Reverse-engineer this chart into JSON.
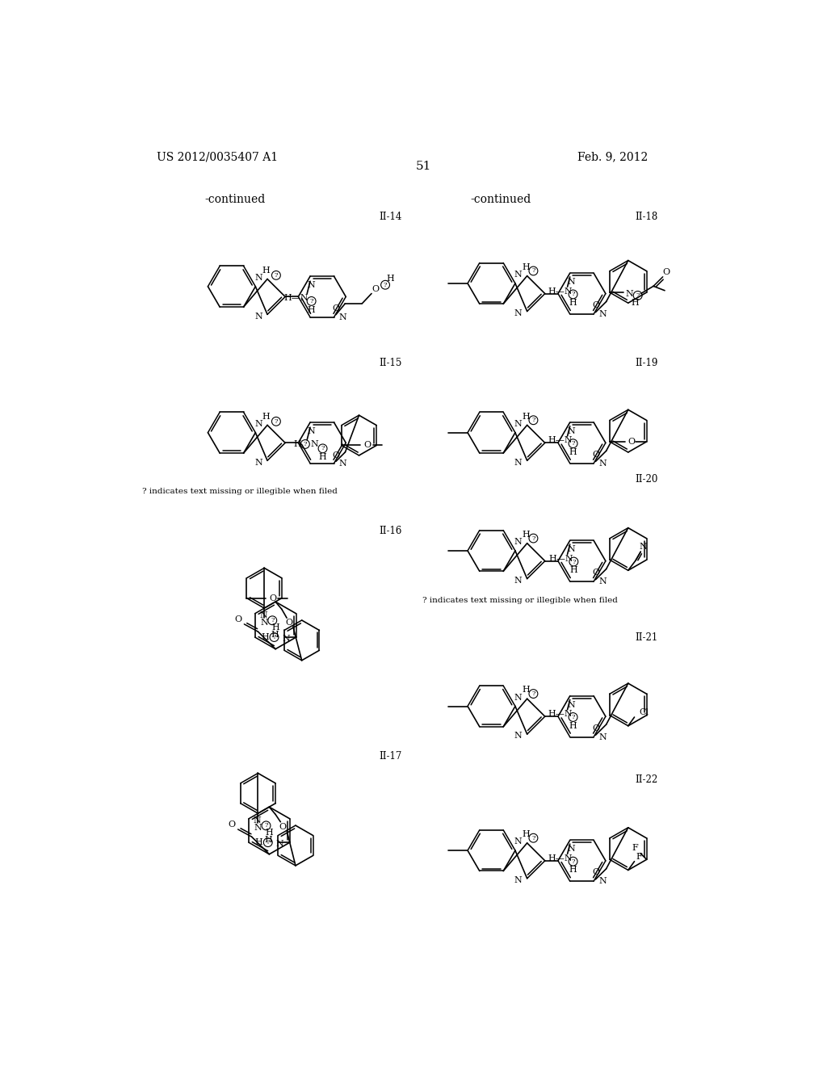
{
  "page_header_left": "US 2012/0035407 A1",
  "page_header_right": "Feb. 9, 2012",
  "page_number": "51",
  "continued_left": "-continued",
  "continued_right": "-continued",
  "background_color": "#ffffff",
  "note_text_left": "? indicates text missing or illegible when filed",
  "note_text_right": "? indicates text missing or illegible when filed",
  "label_14": "II-14",
  "label_15": "II-15",
  "label_16": "II-16",
  "label_17": "II-17",
  "label_18": "II-18",
  "label_19": "II-19",
  "label_20": "II-20",
  "label_21": "II-21",
  "label_22": "II-22"
}
